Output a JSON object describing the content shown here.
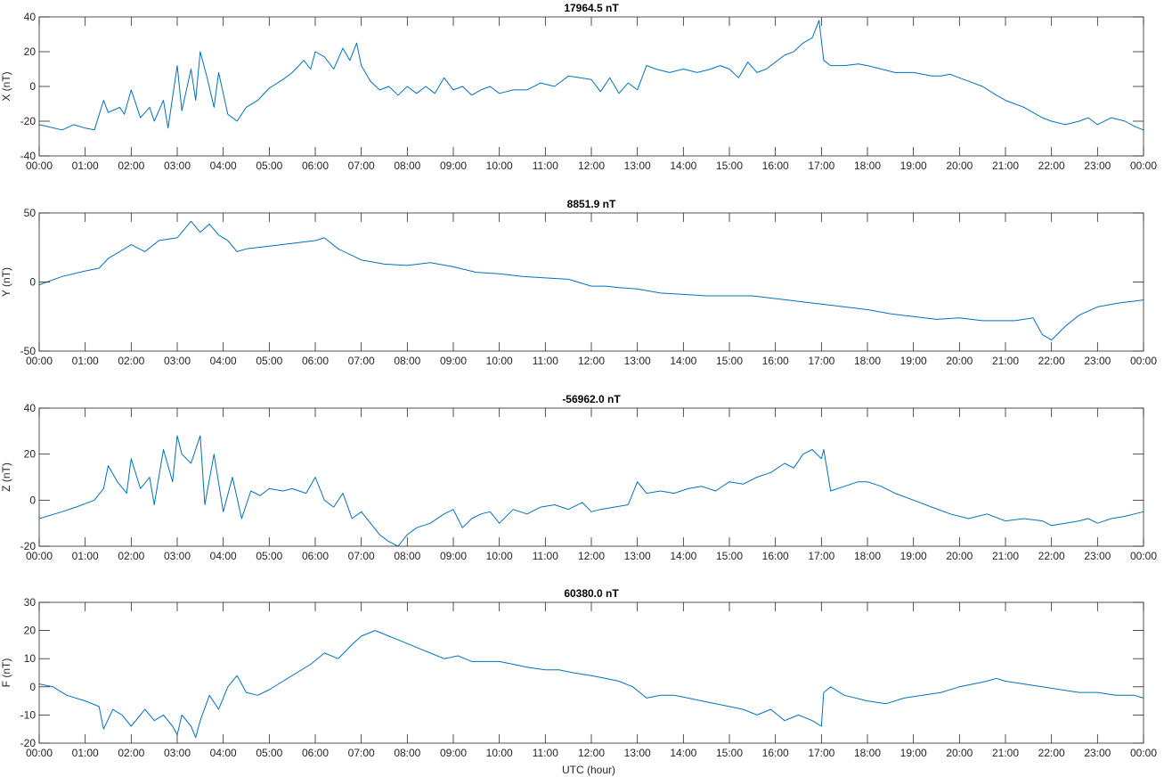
{
  "colors": {
    "line": "#0072BD",
    "axes": "#262626",
    "background": "#ffffff"
  },
  "xlabel": "UTC (hour)",
  "x_tick_labels": [
    "00:00",
    "01:00",
    "02:00",
    "03:00",
    "04:00",
    "05:00",
    "06:00",
    "07:00",
    "08:00",
    "09:00",
    "10:00",
    "11:00",
    "12:00",
    "13:00",
    "14:00",
    "15:00",
    "16:00",
    "17:00",
    "18:00",
    "19:00",
    "20:00",
    "21:00",
    "22:00",
    "23:00",
    "00:00"
  ],
  "chart_data": [
    {
      "type": "line",
      "title": "17964.5 nT",
      "ylabel": "X (nT)",
      "xlim": [
        0,
        24
      ],
      "ylim": [
        -40,
        40
      ],
      "y_ticks": [
        -40,
        -20,
        0,
        20,
        40
      ],
      "grid": false,
      "x": [
        0,
        0.5,
        0.75,
        1,
        1.2,
        1.4,
        1.5,
        1.75,
        1.85,
        2,
        2.2,
        2.4,
        2.5,
        2.7,
        2.8,
        3,
        3.1,
        3.3,
        3.4,
        3.5,
        3.65,
        3.8,
        3.9,
        4.1,
        4.3,
        4.5,
        4.75,
        5,
        5.3,
        5.5,
        5.75,
        5.9,
        6,
        6.2,
        6.4,
        6.6,
        6.75,
        6.9,
        7,
        7.2,
        7.4,
        7.6,
        7.8,
        8,
        8.2,
        8.4,
        8.6,
        8.8,
        9,
        9.2,
        9.4,
        9.6,
        9.8,
        10,
        10.3,
        10.6,
        10.9,
        11.2,
        11.5,
        11.75,
        12,
        12.2,
        12.4,
        12.6,
        12.8,
        13,
        13.2,
        13.4,
        13.7,
        14,
        14.3,
        14.6,
        14.8,
        15,
        15.2,
        15.4,
        15.6,
        15.8,
        16,
        16.2,
        16.4,
        16.6,
        16.8,
        16.95,
        17.05,
        17.2,
        17.5,
        17.8,
        18,
        18.3,
        18.6,
        19,
        19.4,
        19.6,
        19.8,
        20,
        20.2,
        20.5,
        20.8,
        21,
        21.2,
        21.4,
        21.6,
        21.8,
        22,
        22.3,
        22.6,
        22.8,
        23,
        23.3,
        23.6,
        23.8,
        24
      ],
      "y": [
        -22,
        -25,
        -22,
        -24,
        -25,
        -8,
        -15,
        -12,
        -16,
        -2,
        -18,
        -12,
        -20,
        -8,
        -24,
        12,
        -14,
        10,
        -8,
        20,
        5,
        -12,
        8,
        -16,
        -20,
        -12,
        -8,
        -1,
        4,
        8,
        15,
        10,
        20,
        17,
        10,
        22,
        15,
        25,
        12,
        3,
        -2,
        0,
        -5,
        0,
        -4,
        0,
        -4,
        5,
        -2,
        0,
        -5,
        -2,
        0,
        -4,
        -2,
        -2,
        2,
        0,
        6,
        5,
        4,
        -3,
        5,
        -4,
        2,
        -2,
        12,
        10,
        8,
        10,
        8,
        10,
        12,
        10,
        5,
        14,
        8,
        10,
        14,
        18,
        20,
        25,
        28,
        38,
        15,
        12,
        12,
        13,
        12,
        10,
        8,
        8,
        6,
        6,
        7,
        5,
        3,
        0,
        -5,
        -8,
        -10,
        -12,
        -15,
        -18,
        -20,
        -22,
        -20,
        -18,
        -22,
        -18,
        -20,
        -23,
        -25
      ]
    },
    {
      "type": "line",
      "title": "8851.9 nT",
      "ylabel": "Y (nT)",
      "xlim": [
        0,
        24
      ],
      "ylim": [
        -50,
        50
      ],
      "y_ticks": [
        -50,
        0,
        50
      ],
      "grid": false,
      "x": [
        0,
        0.5,
        1,
        1.3,
        1.5,
        2,
        2.3,
        2.6,
        3,
        3.3,
        3.5,
        3.7,
        3.9,
        4.1,
        4.3,
        4.5,
        5,
        5.5,
        6,
        6.2,
        6.5,
        7,
        7.5,
        8,
        8.5,
        9,
        9.5,
        10,
        10.5,
        11,
        11.5,
        12,
        12.3,
        12.6,
        13,
        13.5,
        14,
        14.5,
        15,
        15.5,
        16,
        16.5,
        17,
        17.5,
        18,
        18.5,
        19,
        19.5,
        20,
        20.5,
        21,
        21.2,
        21.6,
        21.8,
        22,
        22.3,
        22.6,
        23,
        23.5,
        24
      ],
      "y": [
        -2,
        4,
        8,
        10,
        17,
        27,
        22,
        30,
        32,
        44,
        36,
        42,
        34,
        30,
        22,
        24,
        26,
        28,
        30,
        32,
        24,
        16,
        13,
        12,
        14,
        11,
        7,
        6,
        4,
        3,
        2,
        -3,
        -3,
        -4,
        -5,
        -8,
        -9,
        -10,
        -10,
        -10,
        -12,
        -14,
        -16,
        -18,
        -20,
        -23,
        -25,
        -27,
        -26,
        -28,
        -28,
        -28,
        -26,
        -38,
        -42,
        -32,
        -24,
        -18,
        -15,
        -13
      ]
    },
    {
      "type": "line",
      "title": "-56962.0 nT",
      "ylabel": "Z (nT)",
      "xlim": [
        0,
        24
      ],
      "ylim": [
        -20,
        40
      ],
      "y_ticks": [
        -20,
        0,
        20,
        40
      ],
      "grid": false,
      "x": [
        0,
        0.5,
        0.8,
        1.2,
        1.4,
        1.5,
        1.7,
        1.9,
        2,
        2.2,
        2.4,
        2.5,
        2.7,
        2.9,
        3,
        3.1,
        3.3,
        3.5,
        3.6,
        3.8,
        4,
        4.2,
        4.4,
        4.6,
        4.8,
        5,
        5.3,
        5.5,
        5.8,
        6,
        6.2,
        6.4,
        6.6,
        6.8,
        7,
        7.2,
        7.4,
        7.6,
        7.8,
        8,
        8.2,
        8.5,
        8.8,
        9,
        9.2,
        9.4,
        9.6,
        9.8,
        10,
        10.3,
        10.6,
        10.9,
        11.2,
        11.5,
        11.8,
        12,
        12.2,
        12.5,
        12.8,
        13,
        13.2,
        13.5,
        13.8,
        14.1,
        14.4,
        14.7,
        15,
        15.3,
        15.6,
        15.9,
        16.2,
        16.4,
        16.6,
        16.8,
        17,
        17.05,
        17.2,
        17.5,
        17.8,
        18,
        18.3,
        18.6,
        19,
        19.4,
        19.8,
        20.2,
        20.6,
        21,
        21.4,
        21.8,
        22,
        22.3,
        22.6,
        22.8,
        23,
        23.3,
        23.6,
        23.8,
        24
      ],
      "y": [
        -8,
        -5,
        -3,
        0,
        5,
        15,
        8,
        3,
        18,
        5,
        10,
        -2,
        22,
        8,
        28,
        20,
        16,
        28,
        -2,
        20,
        -5,
        10,
        -8,
        4,
        2,
        5,
        4,
        5,
        3,
        10,
        0,
        -3,
        3,
        -8,
        -5,
        -10,
        -15,
        -18,
        -20,
        -15,
        -12,
        -10,
        -6,
        -4,
        -12,
        -8,
        -6,
        -5,
        -10,
        -4,
        -6,
        -3,
        -2,
        -4,
        -1,
        -5,
        -4,
        -3,
        -2,
        8,
        3,
        4,
        3,
        5,
        6,
        4,
        8,
        7,
        10,
        12,
        16,
        14,
        20,
        22,
        18,
        22,
        4,
        6,
        8,
        8,
        6,
        3,
        0,
        -3,
        -6,
        -8,
        -6,
        -9,
        -8,
        -9,
        -11,
        -10,
        -9,
        -8,
        -10,
        -8,
        -7,
        -6,
        -5
      ]
    },
    {
      "type": "line",
      "title": "60380.0 nT",
      "ylabel": "F (nT)",
      "xlim": [
        0,
        24
      ],
      "ylim": [
        -20,
        30
      ],
      "y_ticks": [
        -20,
        -10,
        0,
        10,
        20,
        30
      ],
      "grid": false,
      "x": [
        0,
        0.3,
        0.6,
        1,
        1.3,
        1.4,
        1.6,
        1.8,
        2,
        2.3,
        2.5,
        2.7,
        2.9,
        3,
        3.1,
        3.3,
        3.4,
        3.5,
        3.7,
        3.9,
        4.1,
        4.3,
        4.5,
        4.75,
        5,
        5.3,
        5.6,
        5.9,
        6.2,
        6.5,
        6.8,
        7,
        7.3,
        7.6,
        7.9,
        8.2,
        8.5,
        8.8,
        9.1,
        9.4,
        9.7,
        10,
        10.3,
        10.6,
        11,
        11.3,
        11.6,
        12,
        12.3,
        12.6,
        12.9,
        13.2,
        13.5,
        13.8,
        14.1,
        14.4,
        14.7,
        15,
        15.3,
        15.6,
        15.9,
        16.2,
        16.5,
        16.8,
        17,
        17.05,
        17.2,
        17.5,
        18,
        18.4,
        18.8,
        19.2,
        19.6,
        20,
        20.3,
        20.6,
        20.8,
        21,
        21.4,
        21.8,
        22.2,
        22.6,
        23,
        23.4,
        23.8,
        24
      ],
      "y": [
        1,
        0,
        -3,
        -5,
        -7,
        -15,
        -8,
        -10,
        -14,
        -8,
        -12,
        -10,
        -14,
        -17,
        -10,
        -14,
        -18,
        -12,
        -3,
        -8,
        0,
        4,
        -2,
        -3,
        -1,
        2,
        5,
        8,
        12,
        10,
        15,
        18,
        20,
        18,
        16,
        14,
        12,
        10,
        11,
        9,
        9,
        9,
        8,
        7,
        6,
        6,
        5,
        4,
        3,
        2,
        0,
        -4,
        -3,
        -3,
        -4,
        -5,
        -6,
        -7,
        -8,
        -10,
        -8,
        -12,
        -10,
        -12,
        -14,
        -2,
        0,
        -3,
        -5,
        -6,
        -4,
        -3,
        -2,
        0,
        1,
        2,
        3,
        2,
        1,
        0,
        -1,
        -2,
        -2,
        -3,
        -3,
        -4
      ]
    }
  ]
}
